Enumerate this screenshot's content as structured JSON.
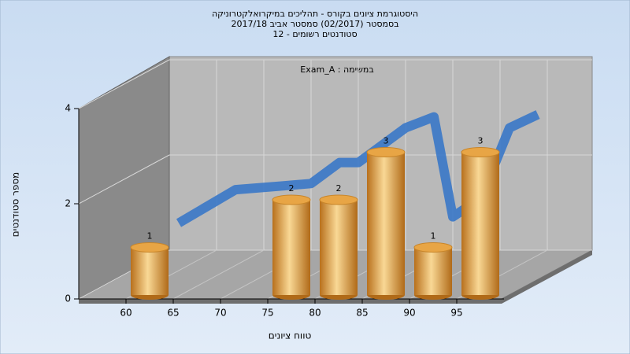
{
  "chart_data": {
    "type": "histogram",
    "title_lines": [
      "היסטוגרמת ציונים בקורס - תהליכים במיקרואלקטרוניקה",
      "בסמסטר (02/2017) סמסטר אביב 2017/18",
      "סטודנטים רשומים - 12"
    ],
    "subtitle": "במשימה : Exam_A",
    "x_label": "טווח ציונים",
    "y_label": "מספר סטודנטים",
    "bins": [
      60,
      65,
      70,
      75,
      80,
      85,
      90,
      95,
      100
    ],
    "counts": [
      1,
      0,
      0,
      2,
      2,
      3,
      1,
      3
    ],
    "color": "#e8a545",
    "xlim": [
      55,
      100
    ],
    "xticks": [
      60,
      65,
      70,
      75,
      80,
      85,
      90,
      95
    ],
    "ylim": [
      0,
      4
    ],
    "yticks": [
      0,
      2,
      4
    ],
    "grid": true,
    "trend": {
      "color": "#3a78c8",
      "x": [
        56,
        62,
        67,
        70,
        73,
        75,
        80,
        83,
        85,
        88,
        91,
        94
      ],
      "values": [
        0.57,
        1.27,
        1.35,
        1.4,
        1.84,
        1.84,
        2.57,
        2.8,
        0.7,
        1.1,
        2.57,
        2.85
      ]
    }
  }
}
